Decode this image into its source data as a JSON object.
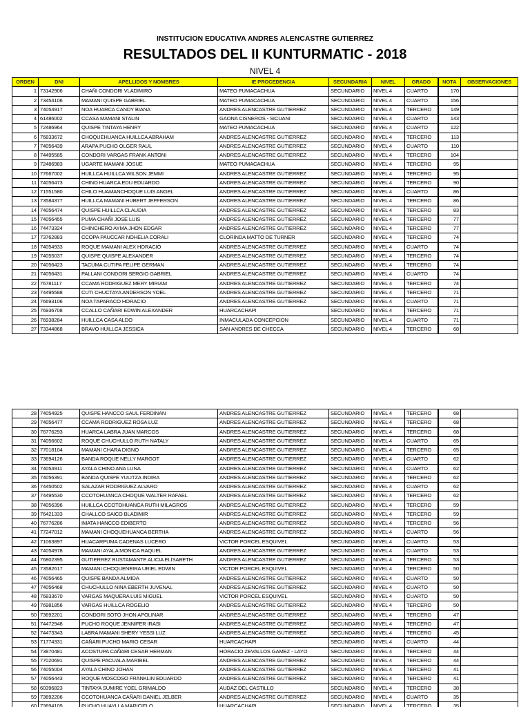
{
  "header": {
    "institution": "INSTITUCION EDUCATIVA ANDRES ALENCASTRE GUTIERREZ",
    "title": "RESULTADOS DEL II KUNTURMATIC - 2018",
    "level": "NIVEL 4"
  },
  "columns": [
    "ORDEN",
    "DNI",
    "APELLIDOS Y NOMBRES",
    "IE PROCEDENCIA",
    "SECUNDARIA",
    "NIVEL",
    "GRADO",
    "NOTA",
    "OBSERVACIONES"
  ],
  "header_color": "#ffff00",
  "rows": [
    [
      "1",
      "73142906",
      "CHAÑI CONDORI VLADIMIRO",
      "MATEO PUMACACHUA",
      "SECUNDARIO",
      "NIVEL 4",
      "CUARTO",
      "170"
    ],
    [
      "2",
      "73454106",
      "MAMANI QUISPE GABRIEL",
      "MATEO PUMACACHUA",
      "SECUNDARIO",
      "NIVEL 4",
      "CUARTO",
      "156"
    ],
    [
      "3",
      "74054917",
      "NOA HUARCA CANDY BIANA",
      "ANDRES ALENCASTRE GUTIERREZ",
      "SECUNDARIO",
      "NIVEL 4",
      "TERCERO",
      "149"
    ],
    [
      "4",
      "61486002",
      "CCASA MAMANI STALIN",
      "GAONA CISNEROS - SICUANI",
      "SECUNDARIO",
      "NIVEL 4",
      "CUARTO",
      "143"
    ],
    [
      "5",
      "72486964",
      "QUISPE TINTAYA HENRY",
      "MATEO PUMACACHUA",
      "SECUNDARIO",
      "NIVEL 4",
      "CUARTO",
      "122"
    ],
    [
      "6",
      "76833672",
      "CHOQUEHUANCA HUILLCA ABRAHAM",
      "ANDRES ALENCASTRE GUTIERREZ",
      "SECUNDARIO",
      "NIVEL 4",
      "TERCERO",
      "113"
    ],
    [
      "7",
      "74056439",
      "ARAPA PUCHO OLGER RAUL",
      "ANDRES ALENCASTRE GUTIERREZ",
      "SECUNDARIO",
      "NIVEL 4",
      "CUARTO",
      "110"
    ],
    [
      "8",
      "74495585",
      "CONDORI VARGAS FRANK ANTONI",
      "ANDRES ALENCASTRE GUTIERREZ",
      "SECUNDARIO",
      "NIVEL 4",
      "TERCERO",
      "104"
    ],
    [
      "9",
      "72486983",
      "UGARTE MAMANI JOSUE",
      "MATEO PUMACACHUA",
      "SECUNDARIO",
      "NIVEL 4",
      "TERCERO",
      "95"
    ],
    [
      "10",
      "77667002",
      "HUILLCA HUILLCA WILSON JEMMI",
      "ANDRES ALENCASTRE GUTIERREZ",
      "SECUNDARIO",
      "NIVEL 4",
      "TERCERO",
      "95"
    ],
    [
      "11",
      "74056473",
      "CHINO HUARCA EDU EDUARDO",
      "ANDRES ALENCASTRE GUTIERREZ",
      "SECUNDARIO",
      "NIVEL 4",
      "TERCERO",
      "90"
    ],
    [
      "12",
      "71551580",
      "CHILO HUAMANCHOQUE LUIS ANGEL",
      "ANDRES ALENCASTRE GUTIERREZ",
      "SECUNDARIO",
      "NIVEL 4",
      "CUARTO",
      "86"
    ],
    [
      "13",
      "73584377",
      "HUILLCA MAMANI HUBERT JEFFERSON",
      "ANDRES ALENCASTRE GUTIERREZ",
      "SECUNDARIO",
      "NIVEL 4",
      "TERCERO",
      "86"
    ],
    [
      "14",
      "74056474",
      "QUISPE HUILLCA CLAUDIA",
      "ANDRES ALENCASTRE GUTIERREZ",
      "SECUNDARIO",
      "NIVEL 4",
      "TERCERO",
      "83"
    ],
    [
      "15",
      "74056455",
      "PUMA CHAÑI JOSE LUIS",
      "ANDRES ALENCASTRE GUTIERREZ",
      "SECUNDARIO",
      "NIVEL 4",
      "TERCERO",
      "77"
    ],
    [
      "16",
      "74473324",
      "CHINCHERO AYMA JHON EDGAR",
      "ANDRES ALENCASTRE GUTIERREZ",
      "SECUNDARIO",
      "NIVEL 4",
      "TERCERO",
      "77"
    ],
    [
      "17",
      "73762883",
      "CCOPA PAUCCAR NOHELIA CORALI",
      "CLORINDA MATTO DE TURNER",
      "SECUNDARIO",
      "NIVEL 4",
      "TERCERO",
      "74"
    ],
    [
      "18",
      "74054933",
      "ROQUE MAMANI ALEX HORACIO",
      "ANDRES ALENCASTRE GUTIERREZ",
      "SECUNDARIO",
      "NIVEL 4",
      "CUARTO",
      "74"
    ],
    [
      "19",
      "74055037",
      "QUISPE QUISPE ALEXANDER",
      "ANDRES ALENCASTRE GUTIERREZ",
      "SECUNDARIO",
      "NIVEL 4",
      "TERCERO",
      "74"
    ],
    [
      "20",
      "74056423",
      "TACUMA CUTIPA FELIPE GERMAN",
      "ANDRES ALENCASTRE GUTIERREZ",
      "SECUNDARIO",
      "NIVEL 4",
      "TERCERO",
      "74"
    ],
    [
      "21",
      "74056431",
      "PALLANI CONDORI SERGIO GABRIEL",
      "ANDRES ALENCASTRE GUTIERREZ",
      "SECUNDARIO",
      "NIVEL 4",
      "CUARTO",
      "74"
    ],
    [
      "22",
      "76781117",
      "CCAMA RODRIGUEZ MERY MIRIAM",
      "ANDRES ALENCASTRE GUTIERREZ",
      "SECUNDARIO",
      "NIVEL 4",
      "TERCERO",
      "74"
    ],
    [
      "23",
      "74495588",
      "CUTI CHUCTAYA ANDERSON YOEL",
      "ANDRES ALENCASTRE GUTIERREZ",
      "SECUNDARIO",
      "NIVEL 4",
      "TERCERO",
      "71"
    ],
    [
      "24",
      "76693106",
      "NOA TAPARACO HORACIO",
      "ANDRES ALENCASTRE GUTIERREZ",
      "SECUNDARIO",
      "NIVEL 4",
      "CUARTO",
      "71"
    ],
    [
      "25",
      "76936708",
      "CCALLO CAÑARI EDWIN ALEXANDER",
      "HUARCACHAPI",
      "SECUNDARIO",
      "NIVEL 4",
      "TERCERO",
      "71"
    ],
    [
      "26",
      "76938284",
      "HUILLCA CASA ALDO",
      "INMACULADA CONCEPCION",
      "SECUNDARIO",
      "NIVEL 4",
      "CUARTO",
      "71"
    ],
    [
      "27",
      "73344868",
      "BRAVO HUILLCA JESSICA",
      "SAN ANDRES DE CHECCA",
      "SECUNDARIO",
      "NIVEL 4",
      "TERCERO",
      "68"
    ],
    [
      "28",
      "74054925",
      "QUISPE HANCCO SAUL FERDINAN",
      "ANDRES ALENCASTRE GUTIERREZ",
      "SECUNDARIO",
      "NIVEL 4",
      "TERCERO",
      "68"
    ],
    [
      "29",
      "74056477",
      "CCAMA RODRIGUEZ ROSA LUZ",
      "ANDRES ALENCASTRE GUTIERREZ",
      "SECUNDARIO",
      "NIVEL 4",
      "TERCERO",
      "68"
    ],
    [
      "30",
      "76776293",
      "HUARCA LABRA JUAN MARCOS",
      "ANDRES ALENCASTRE GUTIERREZ",
      "SECUNDARIO",
      "NIVEL 4",
      "TERCERO",
      "68"
    ],
    [
      "31",
      "74056602",
      "ROQUE CHUCHULLO RUTH NATALY",
      "ANDRES ALENCASTRE GUTIERREZ",
      "SECUNDARIO",
      "NIVEL 4",
      "CUARTO",
      "65"
    ],
    [
      "32",
      "77018104",
      "MAMANI CHARA DIGNO",
      "ANDRES ALENCASTRE GUTIERREZ",
      "SECUNDARIO",
      "NIVEL 4",
      "TERCERO",
      "65"
    ],
    [
      "33",
      "73694126",
      "BANDA ROQUE NELLY MARGOT",
      "ANDRES ALENCASTRE GUTIERREZ",
      "SECUNDARIO",
      "NIVEL 4",
      "CUARTO",
      "62"
    ],
    [
      "34",
      "74054911",
      "AYALA CHINO ANA LUNA",
      "ANDRES ALENCASTRE GUTIERREZ",
      "SECUNDARIO",
      "NIVEL 4",
      "CUARTO",
      "62"
    ],
    [
      "35",
      "74056391",
      "BANDA QUISPE YULITZA INDIRA",
      "ANDRES ALENCASTRE GUTIERREZ",
      "SECUNDARIO",
      "NIVEL 4",
      "TERCERO",
      "62"
    ],
    [
      "36",
      "74450502",
      "SALAZAR RODRIGUEZ ALVARO",
      "ANDRES ALENCASTRE GUTIERREZ",
      "SECUNDARIO",
      "NIVEL 4",
      "CUARTO",
      "62"
    ],
    [
      "37",
      "74495530",
      "CCOTOHUANCA CHOQUE WALTER RAFAEL",
      "ANDRES ALENCASTRE GUTIERREZ",
      "SECUNDARIO",
      "NIVEL 4",
      "TERCERO",
      "62"
    ],
    [
      "38",
      "74056396",
      "HUILLCA CCOTOHUANCA RUTH MILAGROS",
      "ANDRES ALENCASTRE GUTIERREZ",
      "SECUNDARIO",
      "NIVEL 4",
      "TERCERO",
      "59"
    ],
    [
      "39",
      "76421333",
      "CHALLCO SAICO BLADIMIR",
      "ANDRES ALENCASTRE GUTIERREZ",
      "SECUNDARIO",
      "NIVEL 4",
      "TERCERO",
      "59"
    ],
    [
      "40",
      "76776286",
      "IMATA HANCCO EDIBERTO",
      "ANDRES ALENCASTRE GUTIERREZ",
      "SECUNDARIO",
      "NIVEL 4",
      "TERCERO",
      "56"
    ],
    [
      "41",
      "77247012",
      "MAMANI CHOQUEHUANCA BERTHA",
      "ANDRES ALENCASTRE GUTIERREZ",
      "SECUNDARIO",
      "NIVEL 4",
      "CUARTO",
      "56"
    ],
    [
      "42",
      "71063897",
      "HUACARPUMA CADENAS LUCERO",
      "VICTOR PORCEL ESQUIVEL",
      "SECUNDARIO",
      "NIVEL 4",
      "CUARTO",
      "53"
    ],
    [
      "43",
      "74054978",
      "MAMANI AYALA MONICA RAQUEL",
      "ANDRES ALENCASTRE GUTIERREZ",
      "SECUNDARIO",
      "NIVEL 4",
      "CUARTO",
      "53"
    ],
    [
      "44",
      "76802395",
      "GUTIERREZ BUSTAMANTE ALICIA ELISABETH",
      "ANDRES ALENCASTRE GUTIERREZ",
      "SECUNDARIO",
      "NIVEL 4",
      "TERCERO",
      "53"
    ],
    [
      "45",
      "73582617",
      "MAMANI CHOQUENEIRA URIEL EDWIN",
      "VICTOR PORCEL ESQUIVEL",
      "SECUNDARIO",
      "NIVEL 4",
      "TERCERO",
      "50"
    ],
    [
      "46",
      "74056465",
      "QUISPE BANDA ALMIDA",
      "ANDRES ALENCASTRE GUTIERREZ",
      "SECUNDARIO",
      "NIVEL 4",
      "CUARTO",
      "50"
    ],
    [
      "47",
      "74056468",
      "CHUCHULLO NINA EBERTH JUVENAL",
      "ANDRES ALENCASTRE GUTIERREZ",
      "SECUNDARIO",
      "NIVEL 4",
      "CUARTO",
      "50"
    ],
    [
      "48",
      "76833670",
      "VARGAS MAQUERA LUIS MIGUEL",
      "VICTOR PORCEL ESQUIVEL",
      "SECUNDARIO",
      "NIVEL 4",
      "CUARTO",
      "50"
    ],
    [
      "49",
      "76981856",
      "VARGAS HUILLCA ROGELIO",
      "ANDRES ALENCASTRE GUTIERREZ",
      "SECUNDARIO",
      "NIVEL 4",
      "TERCERO",
      "50"
    ],
    [
      "50",
      "73692201",
      "CONDORI SOTO JHON APOLINAR",
      "ANDRES ALENCASTRE GUTIERREZ",
      "SECUNDARIO",
      "NIVEL 4",
      "TERCERO",
      "47"
    ],
    [
      "51",
      "74472948",
      "PUCHO ROQUE JENNIFER IRASI",
      "ANDRES ALENCASTRE GUTIERREZ",
      "SECUNDARIO",
      "NIVEL 4",
      "TERCERO",
      "47"
    ],
    [
      "52",
      "74473343",
      "LABRA MAMANI SHERY YESSI LUZ",
      "ANDRES ALENCASTRE GUTIERREZ",
      "SECUNDARIO",
      "NIVEL 4",
      "TERCERO",
      "45"
    ],
    [
      "53",
      "71774331",
      "CAÑARI PUCHO MARIO CESAR",
      "HUARCACHAPI",
      "SECUNDARIO",
      "NIVEL 4",
      "CUARTO",
      "44"
    ],
    [
      "54",
      "73870481",
      "ACOSTUPA CAÑARI CESAR HERMAN",
      "HORACIO ZEVALLOS GAMEZ - LAYO",
      "SECUNDARIO",
      "NIVEL 4",
      "TERCERO",
      "44"
    ],
    [
      "55",
      "77020691",
      "QUISPE PACUALA MARIBEL",
      "ANDRES ALENCASTRE GUTIERREZ",
      "SECUNDARIO",
      "NIVEL 4",
      "TERCERO",
      "44"
    ],
    [
      "56",
      "74055004",
      "AYALA CHINO JOHAN",
      "ANDRES ALENCASTRE GUTIERREZ",
      "SECUNDARIO",
      "NIVEL 4",
      "TERCERO",
      "41"
    ],
    [
      "57",
      "74056443",
      "ROQUE MOSCOSO FRANKLIN EDUARDO",
      "ANDRES ALENCASTRE GUTIERREZ",
      "SECUNDARIO",
      "NIVEL 4",
      "TERCERO",
      "41"
    ],
    [
      "58",
      "60396823",
      "TINTAYA SUMIRE YOEL GRIMALDO",
      "AUDAZ DEL CASTILLO",
      "SECUNDARIO",
      "NIVEL 4",
      "TERCERO",
      "38"
    ],
    [
      "59",
      "73692206",
      "CCOTOHUANCA CAÑARI DANIEL JELBER",
      "ANDRES ALENCASTRE GUTIERREZ",
      "SECUNDARIO",
      "NIVEL 4",
      "CUARTO",
      "35"
    ],
    [
      "60",
      "73694109",
      "PUCHO HUAYLLA MARICIELO",
      "HUARCACHAPI",
      "SECUNDARIO",
      "NIVEL 4",
      "TERCERO",
      "35"
    ]
  ]
}
